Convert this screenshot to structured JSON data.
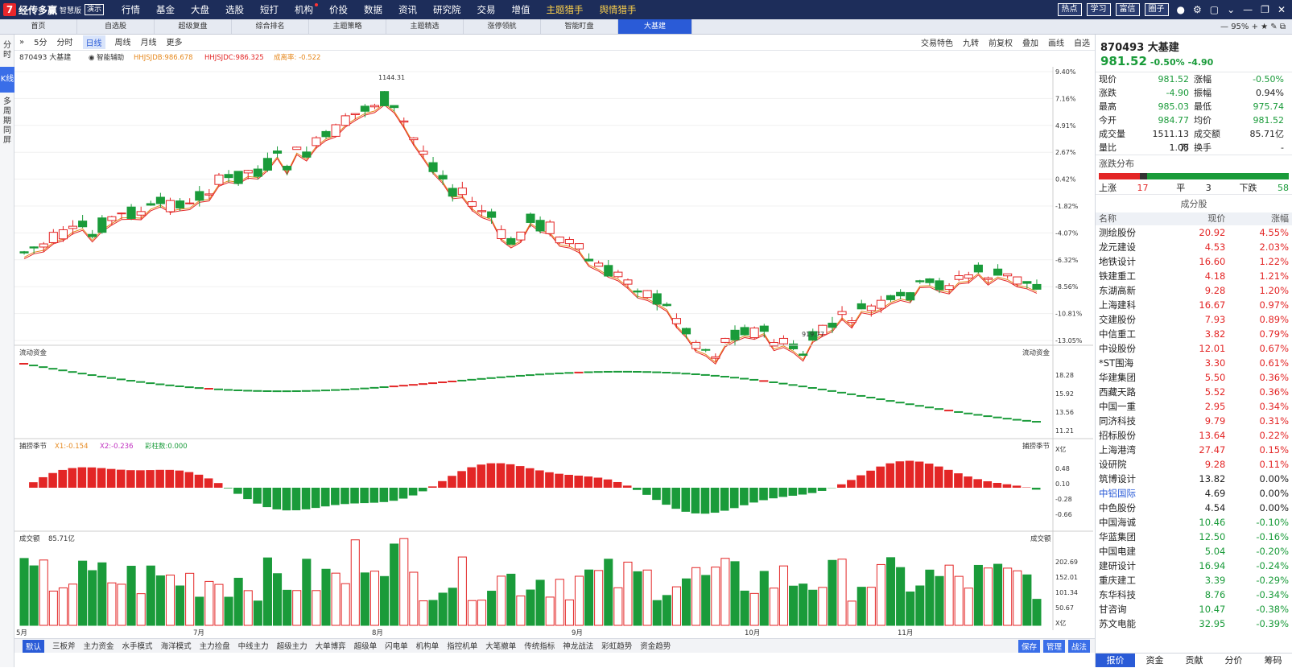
{
  "app": {
    "name": "经传多赢",
    "sub": "智慧版",
    "demo": "演示"
  },
  "menu": [
    "行情",
    "基金",
    "大盘",
    "选股",
    "短打",
    "机构",
    "价投",
    "数据",
    "资讯",
    "研究院",
    "交易",
    "增值",
    "主题猎手",
    "舆情猎手"
  ],
  "topright": [
    "热点",
    "学习",
    "富信",
    "圈子"
  ],
  "tabs": [
    "首页",
    "自选股",
    "超级复盘",
    "综合排名",
    "主题策略",
    "主题精选",
    "涨停领航",
    "智能盯盘",
    "大基建"
  ],
  "zoom": "95%",
  "left_rail": [
    "分时",
    "K线",
    "多周期同屏"
  ],
  "toolbar": {
    "left": [
      "5分",
      "分时",
      "日线",
      "周线",
      "月线",
      "更多"
    ],
    "right": [
      "交易特色",
      "九转",
      "前复权",
      "叠加",
      "画线",
      "自选"
    ]
  },
  "stock": {
    "code_name": "870493 大基建",
    "price": "981.52",
    "chg_pct": "-0.50%",
    "chg": "-4.90"
  },
  "indicators": {
    "main": "870493 大基建",
    "smart": "智能辅助",
    "hhjsdb": "HHJSJDB:986.678",
    "hhjsdc": "HHJSJDC:986.325",
    "swing": "成离率: -0.522",
    "flow": "流动资金",
    "capture": "捕捞季节",
    "x1": "X1:-0.154",
    "x2": "X2:-0.236",
    "bars": "彩柱数:0.000",
    "volume": "成交额",
    "volume_val": "85.71亿"
  },
  "quote": [
    [
      "现价",
      "981.52",
      "g",
      "涨幅",
      "-0.50%",
      "g"
    ],
    [
      "涨跌",
      "-4.90",
      "g",
      "振幅",
      "0.94%",
      ""
    ],
    [
      "最高",
      "985.03",
      "g",
      "最低",
      "975.74",
      "g"
    ],
    [
      "今开",
      "984.77",
      "g",
      "均价",
      "981.52",
      "g"
    ],
    [
      "成交量",
      "1511.13万",
      "",
      "成交额",
      "85.71亿",
      ""
    ],
    [
      "量比",
      "1.08",
      "",
      "换手",
      "-",
      ""
    ]
  ],
  "dist": {
    "title": "涨跌分布",
    "up_label": "上涨",
    "up": "17",
    "flat_label": "平",
    "flat": "3",
    "down_label": "下跌",
    "down": "58"
  },
  "components_title": "成分股",
  "components_head": [
    "名称",
    "现价",
    "涨幅"
  ],
  "components": [
    [
      "测绘股份",
      "20.92",
      "4.55%",
      "r"
    ],
    [
      "龙元建设",
      "4.53",
      "2.03%",
      "r"
    ],
    [
      "地铁设计",
      "16.60",
      "1.22%",
      "r"
    ],
    [
      "铁建重工",
      "4.18",
      "1.21%",
      "r"
    ],
    [
      "东湖高新",
      "9.28",
      "1.20%",
      "r"
    ],
    [
      "上海建科",
      "16.67",
      "0.97%",
      "r"
    ],
    [
      "交建股份",
      "7.93",
      "0.89%",
      "r"
    ],
    [
      "中信重工",
      "3.82",
      "0.79%",
      "r"
    ],
    [
      "中设股份",
      "12.01",
      "0.67%",
      "r"
    ],
    [
      "*ST围海",
      "3.30",
      "0.61%",
      "r"
    ],
    [
      "华建集团",
      "5.50",
      "0.36%",
      "r"
    ],
    [
      "西藏天路",
      "5.52",
      "0.36%",
      "r"
    ],
    [
      "中国一重",
      "2.95",
      "0.34%",
      "r"
    ],
    [
      "同济科技",
      "9.79",
      "0.31%",
      "r"
    ],
    [
      "招标股份",
      "13.64",
      "0.22%",
      "r"
    ],
    [
      "上海港湾",
      "27.47",
      "0.15%",
      "r"
    ],
    [
      "设研院",
      "9.28",
      "0.11%",
      "r"
    ],
    [
      "筑博设计",
      "13.82",
      "0.00%",
      ""
    ],
    [
      "中铝国际",
      "4.69",
      "0.00%",
      ""
    ],
    [
      "中色股份",
      "4.54",
      "0.00%",
      ""
    ],
    [
      "中国海诚",
      "10.46",
      "-0.10%",
      "g"
    ],
    [
      "华蓝集团",
      "12.50",
      "-0.16%",
      "g"
    ],
    [
      "中国电建",
      "5.04",
      "-0.20%",
      "g"
    ],
    [
      "建研设计",
      "16.94",
      "-0.24%",
      "g"
    ],
    [
      "重庆建工",
      "3.39",
      "-0.29%",
      "g"
    ],
    [
      "东华科技",
      "8.76",
      "-0.34%",
      "g"
    ],
    [
      "甘咨询",
      "10.47",
      "-0.38%",
      "g"
    ],
    [
      "苏文电能",
      "32.95",
      "-0.39%",
      "g"
    ]
  ],
  "side_tabs": [
    "报价",
    "资金",
    "贡献",
    "分价",
    "筹码"
  ],
  "bottom_tabs": [
    "默认",
    "三板斧",
    "主力资金",
    "水手模式",
    "海洋模式",
    "主力捡盘",
    "中线主力",
    "超级主力",
    "大单博弈",
    "超级单",
    "闪电单",
    "机构单",
    "指控机单",
    "大笔撤单",
    "传统指标",
    "神龙战法",
    "彩虹趋势",
    "资金趋势"
  ],
  "bottom_right": [
    "保存",
    "管理",
    "战法"
  ],
  "colors": {
    "up": "#e32626",
    "down": "#1a9b3a",
    "accent": "#2a5bd7"
  },
  "chart_data": {
    "type": "candlestick",
    "ylabels": [
      "9.40%",
      "7.16%",
      "4.91%",
      "2.67%",
      "0.42%",
      "-1.82%",
      "-4.07%",
      "-6.32%",
      "-8.56%",
      "-10.81%",
      "-13.05%"
    ],
    "xlabels": [
      "5月",
      "7月",
      "8月",
      "9月",
      "10月",
      "11月"
    ],
    "high_label": "1144.31",
    "low_label": "919.77",
    "flow_labels": [
      "18.28",
      "15.92",
      "13.56",
      "11.21",
      "X亿"
    ],
    "capture_labels": [
      "0.48",
      "0.10",
      "-0.28",
      "-0.66"
    ],
    "volume_labels": [
      "202.69",
      "152.01",
      "101.34",
      "50.67",
      "X亿"
    ]
  }
}
